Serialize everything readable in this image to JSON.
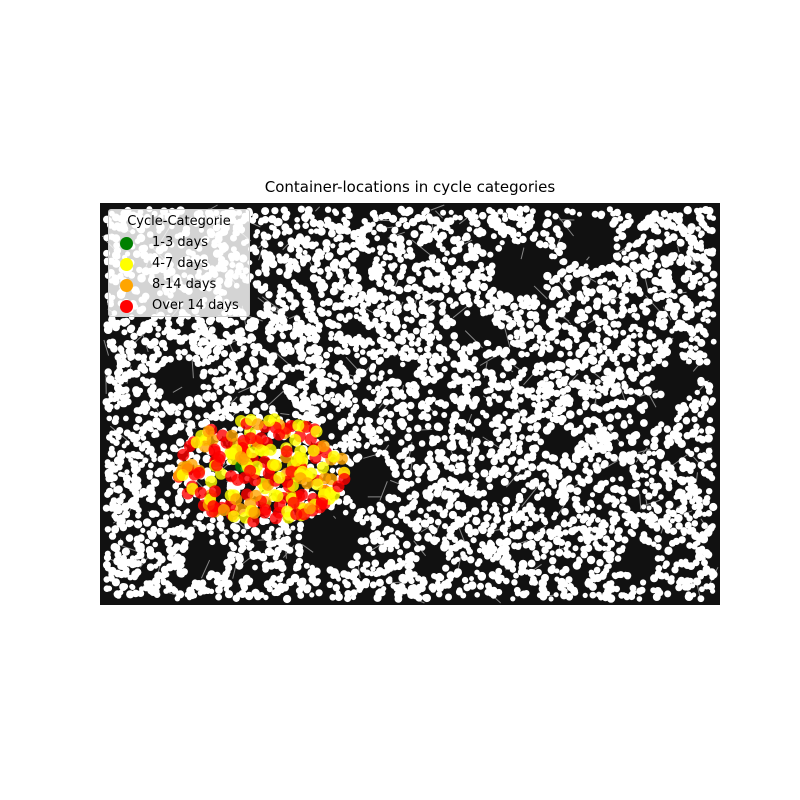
{
  "chart_data": {
    "type": "scatter",
    "title": "Container-locations in cycle categories",
    "map_background": "#111111",
    "street_color": "#ffffff",
    "street_edge_color": "#888888",
    "legend": {
      "title": "Cycle-Categorie",
      "placement": "upper-left",
      "entries": [
        {
          "label": "1-3 days",
          "color": "#008000"
        },
        {
          "label": "4-7 days",
          "color": "#ffff00"
        },
        {
          "label": "8-14 days",
          "color": "#ffa500"
        },
        {
          "label": "Over 14 days",
          "color": "#ff0000"
        }
      ]
    },
    "series": [
      {
        "name": "1-3 days",
        "color": "#008000",
        "count": 1
      },
      {
        "name": "4-7 days",
        "color": "#ffff00",
        "count": 70
      },
      {
        "name": "8-14 days",
        "color": "#ffa500",
        "count": 50
      },
      {
        "name": "Over 14 days",
        "color": "#ff0000",
        "count": 90
      }
    ]
  }
}
